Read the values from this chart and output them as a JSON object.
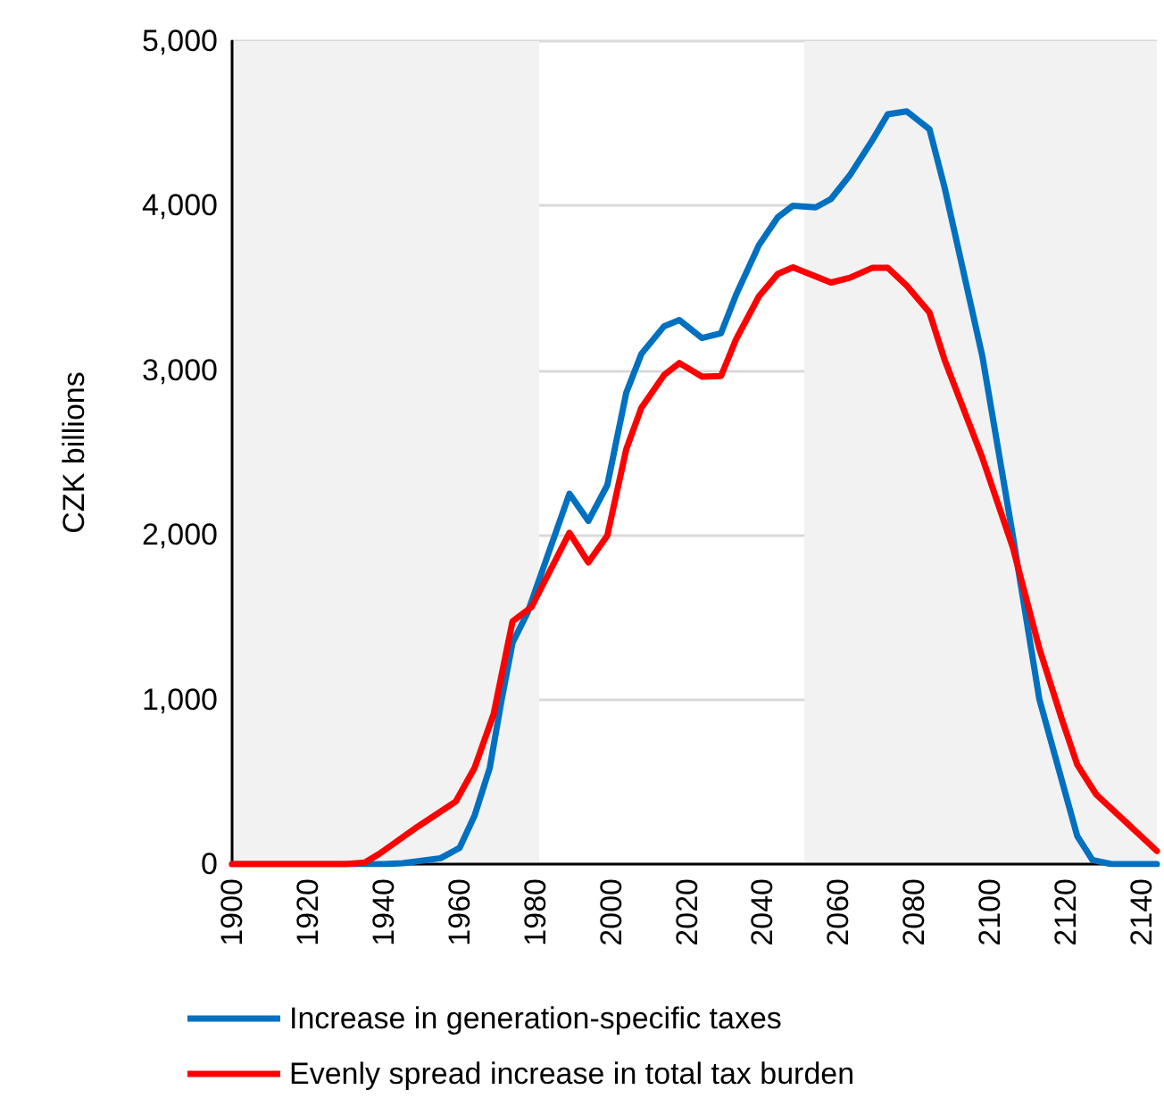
{
  "chart_data": {
    "type": "line",
    "ylabel": "CZK billions",
    "xlim": [
      1900,
      2144
    ],
    "xticks": [
      1900,
      1920,
      1940,
      1960,
      1980,
      2000,
      2020,
      2040,
      2060,
      2080,
      2100,
      2120,
      2140
    ],
    "ylim": [
      0,
      5000
    ],
    "yticks": [
      0,
      {
        "value": 1000,
        "label": "1,000"
      },
      {
        "value": 2000,
        "label": "2,000"
      },
      {
        "value": 3000,
        "label": "3,000"
      },
      {
        "value": 4000,
        "label": "4,000"
      },
      {
        "value": 5000,
        "label": "5,000"
      }
    ],
    "grid": "y",
    "legend": "bottom",
    "marker": "none",
    "line_style": "solid",
    "bands": [
      {
        "axis": "x",
        "from": 1900,
        "to": 1981,
        "color": "#f2f2f2"
      },
      {
        "axis": "x",
        "from": 2051,
        "to": 2144,
        "color": "#f2f2f2"
      }
    ],
    "series": [
      {
        "name": "Increase in generation-specific taxes",
        "color": "#0070c0",
        "x": [
          1900,
          1940,
          1945,
          1955,
          1960,
          1964,
          1968,
          1971,
          1974,
          1978,
          1989,
          1994,
          1999,
          2004,
          2008,
          2014,
          2018,
          2024,
          2029,
          2033,
          2039,
          2044,
          2048,
          2054,
          2058,
          2063,
          2069,
          2073,
          2078,
          2084,
          2088,
          2098,
          2106,
          2113,
          2118,
          2123,
          2127,
          2132,
          2144
        ],
        "values": [
          0,
          0,
          5,
          36,
          98,
          296,
          586,
          983,
          1345,
          1530,
          2250,
          2085,
          2302,
          2863,
          3100,
          3268,
          3305,
          3196,
          3225,
          3460,
          3760,
          3930,
          4000,
          3990,
          4040,
          4185,
          4400,
          4555,
          4573,
          4465,
          4110,
          3080,
          1995,
          1001,
          586,
          170,
          25,
          0,
          0
        ]
      },
      {
        "name": "Evenly spread increase in total tax burden",
        "color": "#ff0000",
        "x": [
          1900,
          1930,
          1935,
          1939,
          1949,
          1959,
          1964,
          1969,
          1974,
          1979,
          1989,
          1994,
          1999,
          2004,
          2008,
          2014,
          2018,
          2024,
          2029,
          2033,
          2039,
          2044,
          2048,
          2058,
          2063,
          2069,
          2073,
          2078,
          2084,
          2088,
          2098,
          2106,
          2113,
          2119,
          2123,
          2128,
          2144
        ],
        "values": [
          0,
          0,
          10,
          65,
          228,
          380,
          586,
          911,
          1475,
          1562,
          2013,
          1833,
          1996,
          2520,
          2773,
          2972,
          3044,
          2961,
          2965,
          3189,
          3449,
          3586,
          3625,
          3533,
          3562,
          3623,
          3623,
          3514,
          3351,
          3063,
          2466,
          1923,
          1309,
          875,
          604,
          423,
          80
        ]
      }
    ]
  }
}
